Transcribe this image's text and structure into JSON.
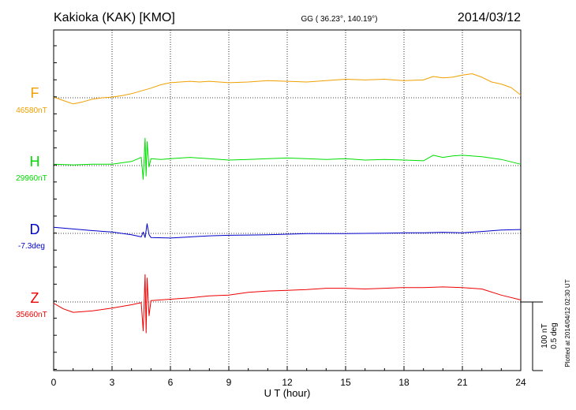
{
  "chart_data": {
    "type": "line",
    "title": "Kakioka (KAK)  [KMO]",
    "subtitle": "GG ( 36.23°, 140.19°)",
    "date": "2014/03/12",
    "xlabel": "U T (hour)",
    "xlim": [
      0,
      24
    ],
    "xticks": [
      0,
      3,
      6,
      9,
      12,
      15,
      18,
      21,
      24
    ],
    "grid": true,
    "scale_bar": {
      "line1": "100 nT",
      "line2": "0.5 deg"
    },
    "plotted_note": "Plotted at 2014/04/12 02:30 UT",
    "panel_spacing": 125,
    "series": [
      {
        "name": "F",
        "baseline_label": "46580nT",
        "baseline": 46580,
        "unit": "nT",
        "color": "#f0a000",
        "x": [
          0,
          0.5,
          1,
          1.5,
          2,
          2.5,
          3,
          3.5,
          4,
          4.5,
          5,
          5.5,
          6,
          6.5,
          7,
          7.5,
          8,
          9,
          10,
          11,
          12,
          13,
          14,
          15,
          16,
          17,
          18,
          19,
          19.5,
          20,
          20.5,
          21,
          21.5,
          22,
          22.5,
          23,
          23.5,
          24
        ],
        "y": [
          46581,
          46576,
          46571,
          46574,
          46578,
          46580,
          46581,
          46583,
          46586,
          46590,
          46594,
          46599,
          46602,
          46603,
          46604,
          46603,
          46604,
          46602,
          46603,
          46605,
          46604,
          46603,
          46605,
          46607,
          46606,
          46607,
          46605,
          46606,
          46611,
          46609,
          46610,
          46613,
          46615,
          46610,
          46603,
          46600,
          46595,
          46584
        ]
      },
      {
        "name": "H",
        "baseline_label": "29960nT",
        "baseline": 29960,
        "unit": "nT",
        "color": "#00dd00",
        "x": [
          0,
          1,
          2,
          3,
          3.5,
          4,
          4.5,
          4.6,
          4.7,
          4.75,
          4.8,
          4.9,
          5,
          5.5,
          6,
          7,
          8,
          9,
          10,
          11,
          12,
          13,
          14,
          15,
          16,
          17,
          18,
          19,
          19.5,
          20,
          20.5,
          21,
          22,
          23,
          24
        ],
        "y": [
          29962,
          29961,
          29962,
          29962,
          29964,
          29966,
          29972,
          29940,
          30000,
          29945,
          29995,
          29958,
          29970,
          29969,
          29970,
          29972,
          29970,
          29968,
          29969,
          29970,
          29971,
          29970,
          29969,
          29970,
          29968,
          29969,
          29968,
          29967,
          29975,
          29972,
          29974,
          29975,
          29973,
          29969,
          29962
        ]
      },
      {
        "name": "D",
        "baseline_label": "-7.3deg",
        "baseline": -7.3,
        "unit": "deg",
        "color": "#0000cc",
        "x": [
          0,
          1,
          2,
          3,
          4,
          4.5,
          4.6,
          4.7,
          4.8,
          4.9,
          5,
          6,
          7,
          8,
          9,
          10,
          11,
          12,
          13,
          14,
          15,
          16,
          17,
          18,
          19,
          20,
          21,
          22,
          23,
          24
        ],
        "y": [
          -7.256,
          -7.268,
          -7.28,
          -7.29,
          -7.31,
          -7.325,
          -7.29,
          -7.33,
          -7.23,
          -7.31,
          -7.33,
          -7.334,
          -7.326,
          -7.318,
          -7.314,
          -7.312,
          -7.31,
          -7.306,
          -7.302,
          -7.302,
          -7.302,
          -7.3,
          -7.298,
          -7.296,
          -7.296,
          -7.292,
          -7.296,
          -7.286,
          -7.276,
          -7.272
        ]
      },
      {
        "name": "Z",
        "baseline_label": "35660nT",
        "baseline": 35660,
        "unit": "nT",
        "color": "#ee0000",
        "x": [
          0,
          0.5,
          1,
          1.5,
          2,
          3,
          4,
          4.5,
          4.6,
          4.7,
          4.75,
          4.8,
          4.9,
          5,
          6,
          7,
          8,
          9,
          10,
          11,
          12,
          13,
          14,
          15,
          16,
          17,
          18,
          19,
          20,
          21,
          22,
          23,
          24
        ],
        "y": [
          35658,
          35650,
          35645,
          35646,
          35647,
          35651,
          35656,
          35659,
          35618,
          35700,
          35615,
          35695,
          35640,
          35662,
          35664,
          35666,
          35669,
          35670,
          35674,
          35676,
          35677,
          35678,
          35680,
          35680,
          35679,
          35680,
          35681,
          35681,
          35682,
          35681,
          35679,
          35670,
          35663
        ]
      }
    ]
  }
}
